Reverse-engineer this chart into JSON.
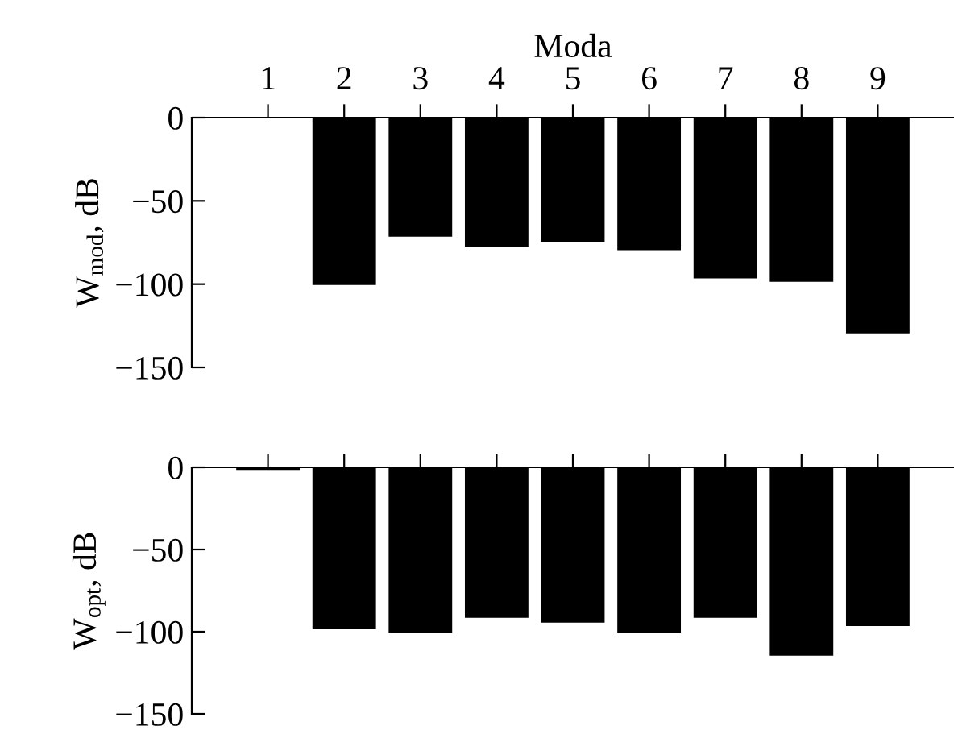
{
  "chart_data": [
    {
      "type": "bar",
      "xlabel": "Moda",
      "ylabel": "W$_{mod}$, dB",
      "categories": [
        "1",
        "2",
        "3",
        "4",
        "5",
        "6",
        "7",
        "8",
        "9"
      ],
      "values": [
        0,
        -100,
        -71,
        -77,
        -74,
        -79,
        -96,
        -98,
        -129
      ],
      "color": "#000000",
      "ylim": [
        -150,
        0
      ],
      "yticks": [
        {
          "value": -150,
          "label": "−150"
        },
        {
          "value": -100,
          "label": "−100"
        },
        {
          "value": -50,
          "label": "−50"
        },
        0
      ],
      "grid": false
    },
    {
      "type": "bar",
      "ylabel": "W$_{opt}$, dB",
      "categories": [
        "1",
        "2",
        "3",
        "4",
        "5",
        "6",
        "7",
        "8",
        "9"
      ],
      "values": [
        -1,
        -98,
        -100,
        -91,
        -94,
        -100,
        -91,
        -114,
        -96
      ],
      "color": "#000000",
      "ylim": [
        -150,
        0
      ],
      "yticks": [
        {
          "value": -150,
          "label": "−150"
        },
        {
          "value": -100,
          "label": "−100"
        },
        {
          "value": -50,
          "label": "−50"
        },
        0
      ],
      "grid": false,
      "tick_labels": "y"
    }
  ]
}
